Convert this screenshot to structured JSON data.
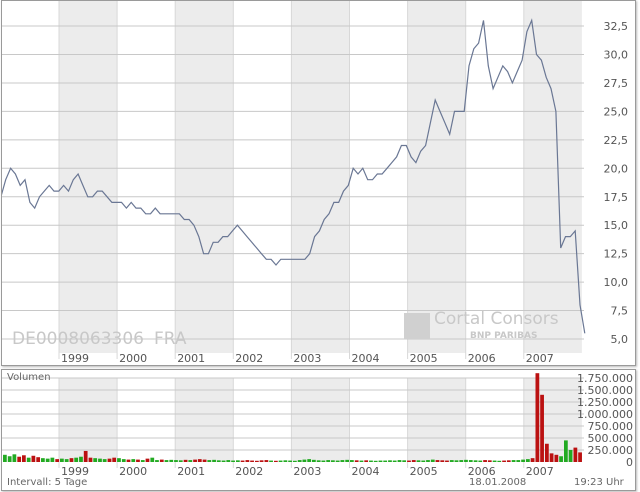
{
  "chart_data": [
    {
      "type": "line",
      "title": "",
      "identifier": "DE0008063306",
      "exchange": "FRA",
      "watermark": "Cortal Consors BNP PARIBAS",
      "start_year": 1998,
      "points_per_year": 12,
      "x_ticks": [
        "1999",
        "2000",
        "2001",
        "2002",
        "2003",
        "2004",
        "2005",
        "2006",
        "2007"
      ],
      "y_ticks": [
        "5,0",
        "7,5",
        "10,0",
        "12,5",
        "15,0",
        "17,5",
        "20,0",
        "22,5",
        "25,0",
        "27,5",
        "30,0",
        "32,5"
      ],
      "ylim": [
        4,
        33.5
      ],
      "xlim": [
        1998.0,
        2008.05
      ],
      "grid": true,
      "values": [
        17.5,
        19,
        20,
        19.5,
        18.5,
        19,
        17,
        16.5,
        17.5,
        18,
        18.5,
        18,
        18,
        18.5,
        18,
        19,
        19.5,
        18.5,
        17.5,
        17.5,
        18,
        18,
        17.5,
        17,
        17,
        17,
        16.5,
        17,
        16.5,
        16.5,
        16,
        16,
        16.5,
        16,
        16,
        16,
        16,
        16,
        15.5,
        15.5,
        15,
        14,
        12.5,
        12.5,
        13.5,
        13.5,
        14,
        14,
        14.5,
        15,
        14.5,
        14,
        13.5,
        13,
        12.5,
        12,
        12,
        11.5,
        12,
        12,
        12,
        12,
        12,
        12,
        12.5,
        14,
        14.5,
        15.5,
        16,
        17,
        17,
        18,
        18.5,
        20,
        19.5,
        20,
        19,
        19,
        19.5,
        19.5,
        20,
        20.5,
        21,
        22,
        22,
        21,
        20.5,
        21.5,
        22,
        24,
        26,
        25,
        24,
        23,
        25,
        25,
        25,
        29,
        30.5,
        31,
        33,
        29,
        27,
        28,
        29,
        28.5,
        27.5,
        28.5,
        29.5,
        32,
        33,
        30,
        29.5,
        28,
        27,
        25,
        13,
        14,
        14,
        14.5,
        8,
        5.5
      ]
    },
    {
      "type": "bar",
      "title": "Volumen",
      "start_year": 1998,
      "points_per_year": 12,
      "x_ticks": [
        "1999",
        "2000",
        "2001",
        "2002",
        "2003",
        "2004",
        "2005",
        "2006",
        "2007"
      ],
      "y_ticks": [
        "0",
        "250.000",
        "500.000",
        "750.000",
        "1.000.000",
        "1.250.000",
        "1.500.000",
        "1.750.000"
      ],
      "ylim": [
        0,
        1900000
      ],
      "values": [
        150000,
        120000,
        160000,
        110000,
        140000,
        90000,
        130000,
        100000,
        80000,
        70000,
        90000,
        60000,
        70000,
        60000,
        80000,
        90000,
        110000,
        230000,
        90000,
        80000,
        70000,
        60000,
        70000,
        90000,
        80000,
        60000,
        50000,
        60000,
        50000,
        40000,
        70000,
        90000,
        40000,
        50000,
        40000,
        45000,
        40000,
        35000,
        45000,
        40000,
        50000,
        60000,
        50000,
        40000,
        45000,
        35000,
        30000,
        40000,
        30000,
        35000,
        30000,
        40000,
        30000,
        25000,
        35000,
        40000,
        30000,
        25000,
        30000,
        35000,
        30000,
        25000,
        40000,
        50000,
        60000,
        45000,
        35000,
        30000,
        40000,
        35000,
        30000,
        40000,
        45000,
        40000,
        35000,
        30000,
        35000,
        30000,
        25000,
        30000,
        30000,
        35000,
        30000,
        40000,
        35000,
        30000,
        40000,
        35000,
        30000,
        40000,
        50000,
        40000,
        35000,
        30000,
        40000,
        35000,
        40000,
        45000,
        40000,
        35000,
        30000,
        40000,
        35000,
        30000,
        25000,
        30000,
        35000,
        40000,
        40000,
        50000,
        60000,
        80000,
        1850000,
        1400000,
        380000,
        180000,
        150000,
        120000,
        450000,
        250000,
        300000,
        200000
      ]
    }
  ],
  "footer": {
    "interval": "Intervall: 5 Tage",
    "date": "18.01.2008",
    "time": "19:23 Uhr"
  },
  "colors": {
    "line": "#6a7794",
    "band": "#ececec",
    "grid": "#c8c8c8",
    "up": "#22aa22",
    "down": "#bb1111"
  }
}
